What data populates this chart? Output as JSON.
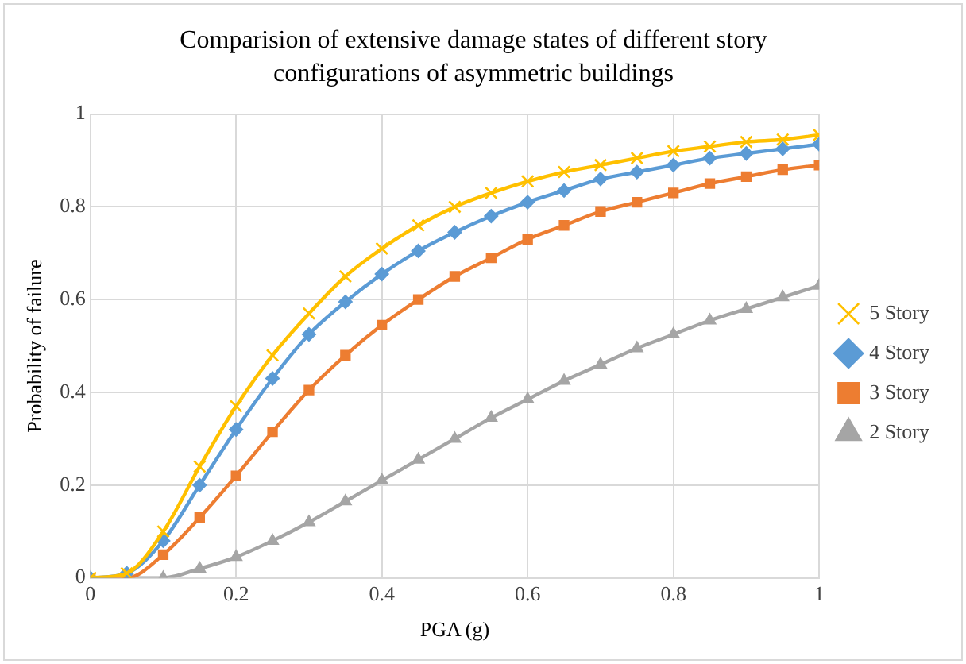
{
  "chart_data": {
    "type": "line",
    "title": "Comparision of extensive damage states of different story configurations of asymmetric buildings",
    "xlabel": "PGA (g)",
    "ylabel": "Probability of failure",
    "x": [
      0,
      0.05,
      0.1,
      0.15,
      0.2,
      0.25,
      0.3,
      0.35,
      0.4,
      0.45,
      0.5,
      0.55,
      0.6,
      0.65,
      0.7,
      0.75,
      0.8,
      0.85,
      0.9,
      0.95,
      1
    ],
    "series": [
      {
        "name": "5 Story",
        "color": "#ffc000",
        "marker": "cross",
        "values": [
          0,
          0.01,
          0.1,
          0.24,
          0.37,
          0.48,
          0.57,
          0.65,
          0.71,
          0.76,
          0.8,
          0.83,
          0.855,
          0.875,
          0.89,
          0.905,
          0.92,
          0.93,
          0.94,
          0.945,
          0.955
        ]
      },
      {
        "name": "4 Story",
        "color": "#5b9bd5",
        "marker": "diamond",
        "values": [
          0,
          0.01,
          0.08,
          0.2,
          0.32,
          0.43,
          0.525,
          0.595,
          0.655,
          0.705,
          0.745,
          0.78,
          0.81,
          0.835,
          0.86,
          0.875,
          0.89,
          0.905,
          0.915,
          0.925,
          0.935
        ]
      },
      {
        "name": "3 Story",
        "color": "#ed7d31",
        "marker": "square",
        "values": [
          0,
          0,
          0.05,
          0.13,
          0.22,
          0.315,
          0.405,
          0.48,
          0.545,
          0.6,
          0.65,
          0.69,
          0.73,
          0.76,
          0.79,
          0.81,
          0.83,
          0.85,
          0.865,
          0.88,
          0.89
        ]
      },
      {
        "name": "2 Story",
        "color": "#a5a5a5",
        "marker": "triangle",
        "values": [
          0,
          0,
          0,
          0.02,
          0.045,
          0.08,
          0.12,
          0.165,
          0.21,
          0.255,
          0.3,
          0.345,
          0.385,
          0.425,
          0.46,
          0.495,
          0.525,
          0.555,
          0.58,
          0.605,
          0.63
        ]
      }
    ],
    "xlim": [
      0,
      1
    ],
    "xticks": [
      0,
      0.2,
      0.4,
      0.6,
      0.8,
      1
    ],
    "ylim": [
      0,
      1
    ],
    "yticks": [
      0,
      0.2,
      0.4,
      0.6,
      0.8,
      1
    ],
    "grid": true,
    "legend": "right"
  }
}
